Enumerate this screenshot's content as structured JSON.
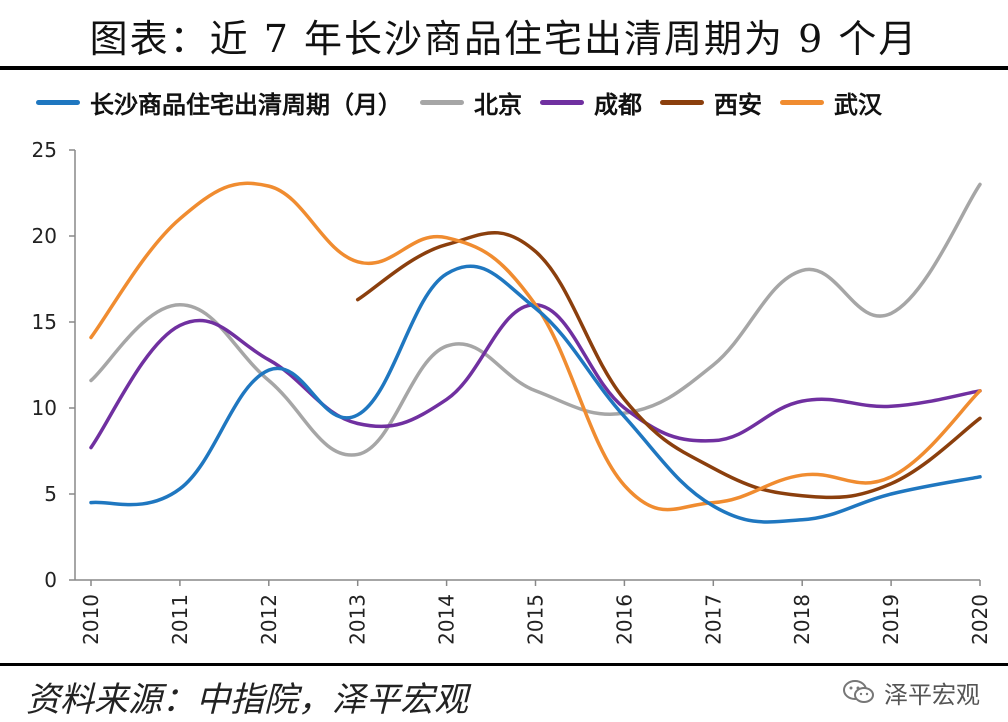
{
  "title": "图表：近 7 年长沙商品住宅出清周期为 9 个月",
  "source": "资料来源：中指院，泽平宏观",
  "brand": "泽平宏观",
  "brand_icon": "wechat-icon",
  "chart_data": {
    "type": "line",
    "x": [
      "2010",
      "2011",
      "2012",
      "2013",
      "2014",
      "2015",
      "2016",
      "2017",
      "2018",
      "2019",
      "2020"
    ],
    "ylim": [
      0,
      25
    ],
    "yticks": [
      0,
      5,
      10,
      15,
      20,
      25
    ],
    "grid": false,
    "legend": "top",
    "series": [
      {
        "name": "长沙商品住宅出清周期（月）",
        "color": "#1F77C0",
        "values": [
          4.5,
          5.3,
          12.2,
          9.6,
          17.8,
          15.8,
          9.5,
          4.3,
          3.5,
          5.0,
          6.0
        ]
      },
      {
        "name": "北京",
        "color": "#A6A6A6",
        "values": [
          11.6,
          16.0,
          11.6,
          7.3,
          13.6,
          11.0,
          9.7,
          12.5,
          18.0,
          15.5,
          23.0
        ]
      },
      {
        "name": "成都",
        "color": "#7030A0",
        "values": [
          7.7,
          14.8,
          12.8,
          9.1,
          10.5,
          16.0,
          10.0,
          8.1,
          10.4,
          10.1,
          11.0
        ]
      },
      {
        "name": "西安",
        "color": "#8B3F0D",
        "values": [
          null,
          null,
          null,
          16.3,
          19.5,
          19.1,
          10.5,
          6.5,
          4.9,
          5.6,
          9.4
        ]
      },
      {
        "name": "武汉",
        "color": "#F08C30",
        "values": [
          14.1,
          21.0,
          22.9,
          18.5,
          19.9,
          16.0,
          5.5,
          4.5,
          6.1,
          6.0,
          11.0
        ]
      }
    ]
  }
}
